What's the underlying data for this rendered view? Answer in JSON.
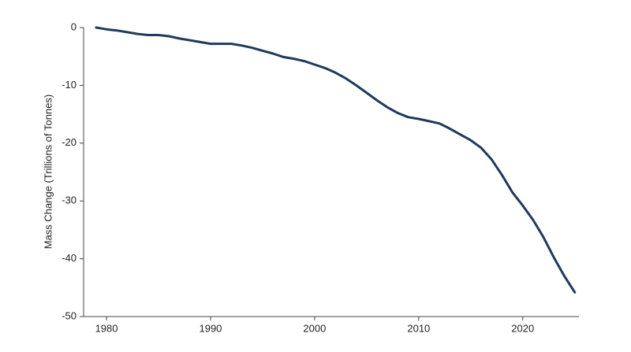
{
  "chart_data": {
    "type": "line",
    "y_label": "Mass Change (Trillions of Tonnes)",
    "x": [
      1979,
      1980,
      1981,
      1982,
      1983,
      1984,
      1985,
      1986,
      1987,
      1988,
      1989,
      1990,
      1991,
      1992,
      1993,
      1994,
      1995,
      1996,
      1997,
      1998,
      1999,
      2000,
      2001,
      2002,
      2003,
      2004,
      2005,
      2006,
      2007,
      2008,
      2009,
      2010,
      2011,
      2012,
      2013,
      2014,
      2015,
      2016,
      2017,
      2018,
      2019,
      2020,
      2021,
      2022,
      2023,
      2024,
      2025
    ],
    "values": [
      0,
      -0.3,
      -0.5,
      -0.8,
      -1.1,
      -1.3,
      -1.3,
      -1.5,
      -1.9,
      -2.2,
      -2.5,
      -2.8,
      -2.8,
      -2.8,
      -3.1,
      -3.5,
      -4.0,
      -4.5,
      -5.1,
      -5.4,
      -5.8,
      -6.4,
      -7.0,
      -7.8,
      -8.8,
      -10.0,
      -11.3,
      -12.6,
      -13.8,
      -14.8,
      -15.5,
      -15.8,
      -16.2,
      -16.6,
      -17.5,
      -18.5,
      -19.5,
      -20.8,
      -22.8,
      -25.5,
      -28.5,
      -30.8,
      -33.3,
      -36.3,
      -39.8,
      -43.0,
      -45.8
    ],
    "color": "#1f3a5c",
    "xlim": [
      1977.8,
      2025.4
    ],
    "xticks": [
      1980,
      1990,
      2000,
      2010,
      2020
    ],
    "ylim": [
      -50,
      0
    ],
    "yticks": [
      0,
      -10,
      -20,
      -30,
      -40,
      -50
    ]
  }
}
